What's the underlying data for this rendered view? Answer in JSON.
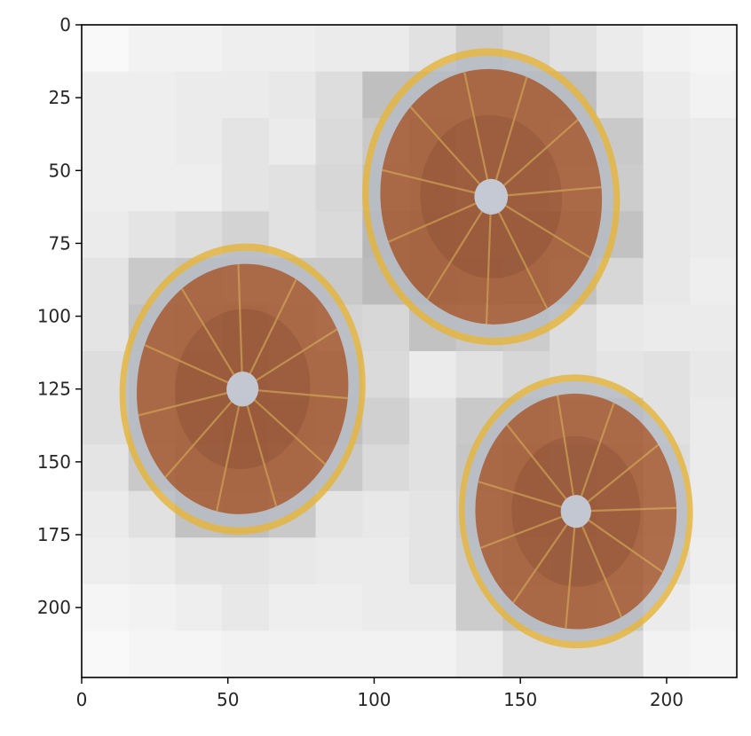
{
  "chart_data": {
    "type": "heatmap",
    "title": "",
    "xlabel": "",
    "ylabel": "",
    "xlim": [
      0,
      224
    ],
    "ylim": [
      224,
      0
    ],
    "y_axis_inverted": true,
    "grid": false,
    "legend": "none",
    "cell_size": 16,
    "x_ticks": [
      0,
      50,
      100,
      150,
      200
    ],
    "y_ticks": [
      0,
      25,
      50,
      75,
      100,
      125,
      150,
      175,
      200
    ],
    "x_tick_labels": [
      "0",
      "50",
      "100",
      "150",
      "200"
    ],
    "y_tick_labels": [
      "0",
      "25",
      "50",
      "75",
      "100",
      "125",
      "150",
      "175",
      "200"
    ],
    "colormap": "greys",
    "heatmap_values": [
      [
        0.02,
        0.06,
        0.06,
        0.08,
        0.08,
        0.1,
        0.1,
        0.16,
        0.28,
        0.22,
        0.16,
        0.1,
        0.06,
        0.04
      ],
      [
        0.08,
        0.08,
        0.1,
        0.1,
        0.12,
        0.18,
        0.36,
        0.36,
        0.36,
        0.36,
        0.36,
        0.18,
        0.1,
        0.06
      ],
      [
        0.08,
        0.08,
        0.1,
        0.14,
        0.1,
        0.2,
        0.3,
        0.4,
        0.36,
        0.36,
        0.34,
        0.3,
        0.12,
        0.1
      ],
      [
        0.08,
        0.08,
        0.08,
        0.14,
        0.16,
        0.22,
        0.34,
        0.4,
        0.34,
        0.36,
        0.3,
        0.28,
        0.12,
        0.1
      ],
      [
        0.1,
        0.14,
        0.18,
        0.24,
        0.16,
        0.2,
        0.4,
        0.46,
        0.4,
        0.4,
        0.4,
        0.34,
        0.12,
        0.1
      ],
      [
        0.14,
        0.3,
        0.32,
        0.3,
        0.3,
        0.3,
        0.38,
        0.46,
        0.44,
        0.42,
        0.34,
        0.22,
        0.12,
        0.08
      ],
      [
        0.14,
        0.34,
        0.36,
        0.4,
        0.34,
        0.24,
        0.22,
        0.34,
        0.3,
        0.28,
        0.18,
        0.12,
        0.1,
        0.1
      ],
      [
        0.18,
        0.32,
        0.4,
        0.4,
        0.34,
        0.32,
        0.2,
        0.1,
        0.16,
        0.22,
        0.18,
        0.14,
        0.16,
        0.12
      ],
      [
        0.18,
        0.34,
        0.4,
        0.44,
        0.4,
        0.36,
        0.26,
        0.16,
        0.3,
        0.32,
        0.3,
        0.3,
        0.16,
        0.1
      ],
      [
        0.14,
        0.3,
        0.38,
        0.4,
        0.36,
        0.3,
        0.2,
        0.16,
        0.32,
        0.4,
        0.38,
        0.34,
        0.18,
        0.1
      ],
      [
        0.1,
        0.16,
        0.34,
        0.36,
        0.3,
        0.14,
        0.12,
        0.14,
        0.3,
        0.4,
        0.4,
        0.36,
        0.2,
        0.1
      ],
      [
        0.08,
        0.1,
        0.14,
        0.14,
        0.12,
        0.1,
        0.1,
        0.14,
        0.28,
        0.36,
        0.38,
        0.34,
        0.16,
        0.08
      ],
      [
        0.04,
        0.06,
        0.08,
        0.12,
        0.08,
        0.08,
        0.1,
        0.1,
        0.28,
        0.34,
        0.34,
        0.3,
        0.1,
        0.06
      ],
      [
        0.02,
        0.04,
        0.04,
        0.06,
        0.06,
        0.06,
        0.06,
        0.06,
        0.1,
        0.2,
        0.2,
        0.2,
        0.06,
        0.04
      ]
    ],
    "overlay_objects": [
      {
        "label": "orange slice",
        "cx": 140,
        "cy": 59,
        "rx": 44,
        "ry": 51,
        "angle": -5
      },
      {
        "label": "orange slice",
        "cx": 55,
        "cy": 125,
        "rx": 42,
        "ry": 50,
        "angle": 5
      },
      {
        "label": "orange slice",
        "cx": 169,
        "cy": 167,
        "rx": 40,
        "ry": 47,
        "angle": -2
      }
    ],
    "overlay_colors": {
      "rind": "#e5b53d",
      "pith": "#b7bcc4",
      "flesh": "#a4552b",
      "flesh_dark": "#7a3418",
      "membrane": "#d39a3c",
      "center": "#c6cbd8"
    }
  }
}
